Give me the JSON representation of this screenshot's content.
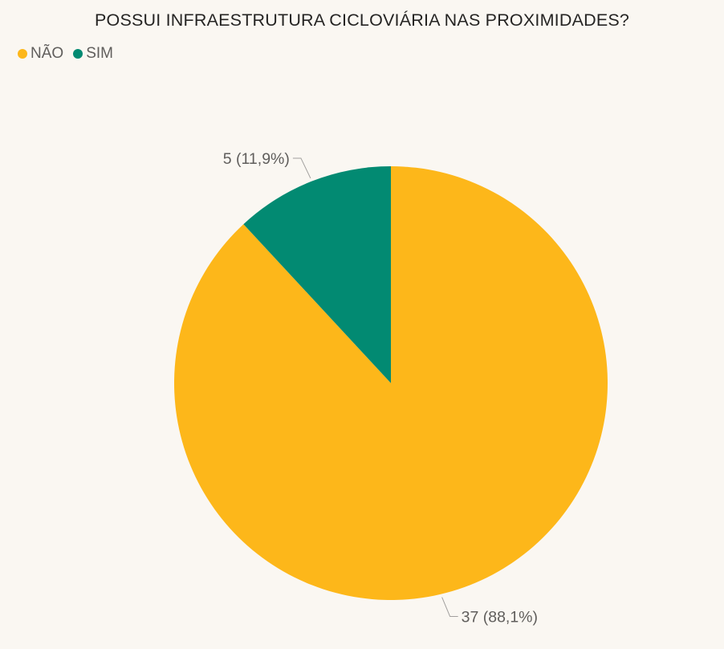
{
  "chart_data": {
    "type": "pie",
    "title": "POSSUI INFRAESTRUTURA CICLOVIÁRIA NAS PROXIMIDADES?",
    "legend_position": "top-left",
    "slices": [
      {
        "name": "NÃO",
        "value": 37,
        "percent": "88,1%",
        "label": "37 (88,1%)",
        "color": "#fdb71a"
      },
      {
        "name": "SIM",
        "value": 5,
        "percent": "11,9%",
        "label": "5 (11,9%)",
        "color": "#028a72"
      }
    ]
  }
}
